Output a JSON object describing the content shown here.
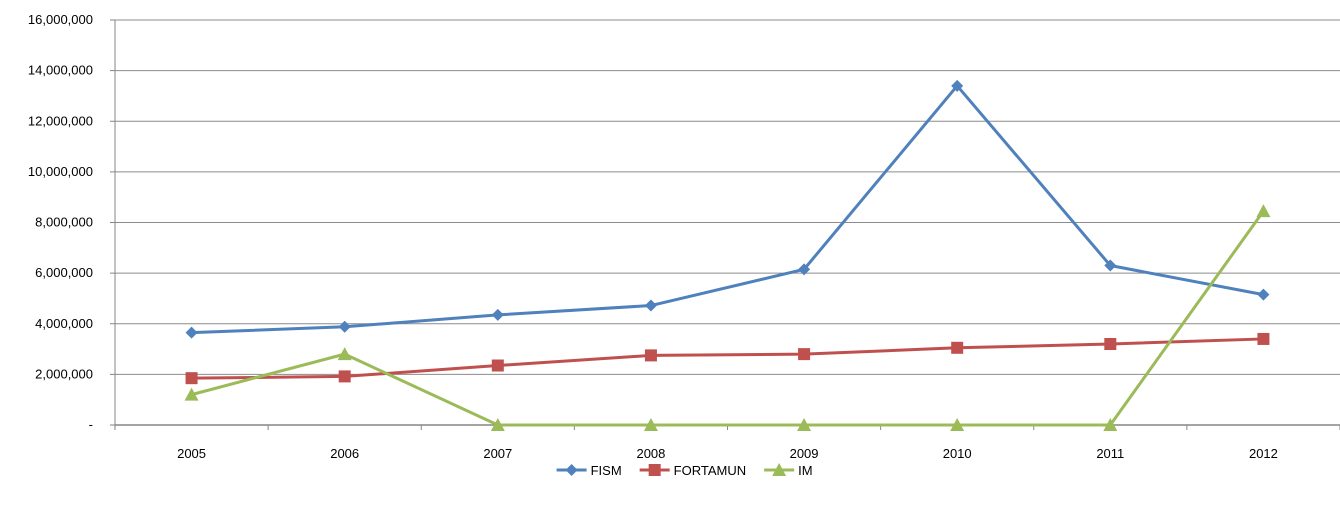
{
  "chart_data": {
    "type": "line",
    "title": "",
    "xlabel": "",
    "ylabel": "",
    "categories": [
      "2005",
      "2006",
      "2007",
      "2008",
      "2009",
      "2010",
      "2011",
      "2012"
    ],
    "ylim": [
      0,
      16000000
    ],
    "y_ticks": [
      0,
      2000000,
      4000000,
      6000000,
      8000000,
      10000000,
      12000000,
      14000000,
      16000000
    ],
    "y_tick_labels": [
      "-",
      "2,000,000",
      "4,000,000",
      "6,000,000",
      "8,000,000",
      "10,000,000",
      "12,000,000",
      "14,000,000",
      "16,000,000"
    ],
    "grid": "horizontal",
    "legend_position": "bottom",
    "series": [
      {
        "name": "FISM",
        "color": "#4F81BD",
        "marker": "diamond",
        "values": [
          3650000,
          3880000,
          4350000,
          4720000,
          6150000,
          13400000,
          6300000,
          5150000
        ]
      },
      {
        "name": "FORTAMUN",
        "color": "#C0504D",
        "marker": "square",
        "values": [
          1850000,
          1920000,
          2350000,
          2750000,
          2800000,
          3050000,
          3200000,
          3400000
        ]
      },
      {
        "name": "IM",
        "color": "#9BBB59",
        "marker": "triangle",
        "values": [
          1200000,
          2800000,
          0,
          0,
          0,
          0,
          0,
          8450000
        ]
      }
    ]
  }
}
